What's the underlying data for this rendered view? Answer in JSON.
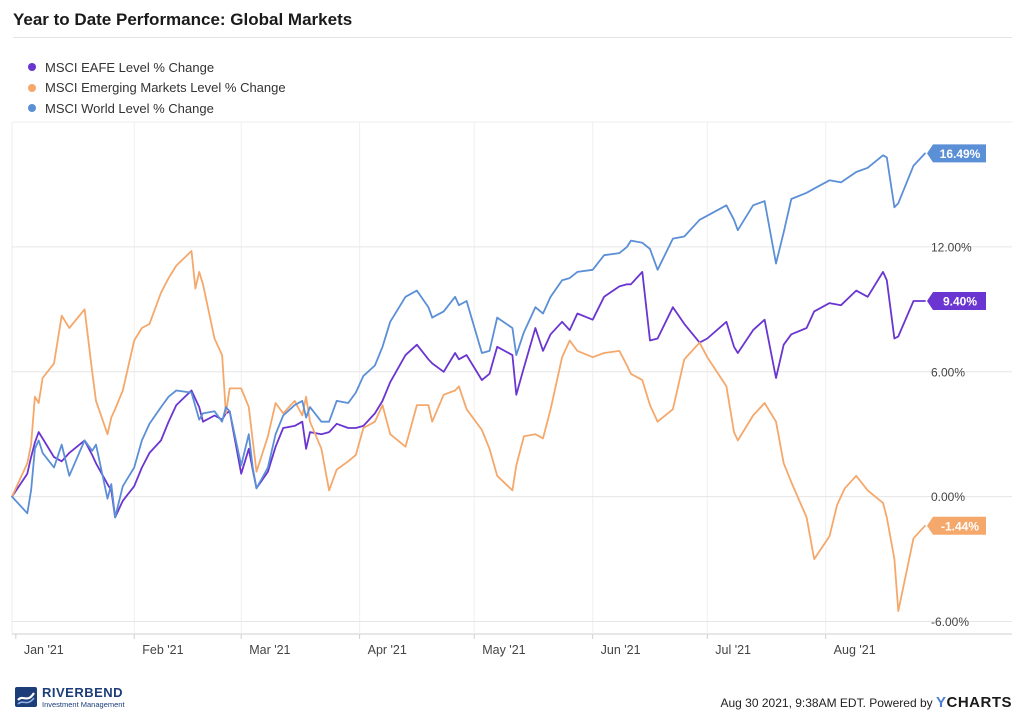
{
  "chart_data": {
    "type": "line",
    "title": "Year to Date Performance: Global Markets",
    "xlabel": "",
    "ylabel": "",
    "x_ticks": [
      "Jan '21",
      "Feb '21",
      "Mar '21",
      "Apr '21",
      "May '21",
      "Jun '21",
      "Jul '21",
      "Aug '21"
    ],
    "y_ticks": [
      "12.00%",
      "6.00%",
      "0.00%",
      "-6.00%"
    ],
    "y_tick_values": [
      12,
      6,
      0,
      -6
    ],
    "ylim": [
      -6.6,
      18
    ],
    "grid": true,
    "legend": "top-left",
    "series": [
      {
        "name": "MSCI EAFE Level % Change",
        "color": "#6a35d0",
        "last_label": "9.40%",
        "x": [
          "2020-12-31",
          "2021-01-04",
          "2021-01-05",
          "2021-01-06",
          "2021-01-07",
          "2021-01-08",
          "2021-01-11",
          "2021-01-13",
          "2021-01-15",
          "2021-01-19",
          "2021-01-21",
          "2021-01-22",
          "2021-01-25",
          "2021-01-26",
          "2021-01-27",
          "2021-01-29",
          "2021-02-01",
          "2021-02-03",
          "2021-02-05",
          "2021-02-08",
          "2021-02-10",
          "2021-02-12",
          "2021-02-16",
          "2021-02-18",
          "2021-02-19",
          "2021-02-22",
          "2021-02-24",
          "2021-02-25",
          "2021-02-26",
          "2021-03-01",
          "2021-03-03",
          "2021-03-04",
          "2021-03-05",
          "2021-03-08",
          "2021-03-10",
          "2021-03-12",
          "2021-03-15",
          "2021-03-17",
          "2021-03-18",
          "2021-03-19",
          "2021-03-22",
          "2021-03-24",
          "2021-03-26",
          "2021-03-29",
          "2021-03-31",
          "2021-04-02",
          "2021-04-05",
          "2021-04-07",
          "2021-04-09",
          "2021-04-13",
          "2021-04-16",
          "2021-04-19",
          "2021-04-20",
          "2021-04-23",
          "2021-04-26",
          "2021-04-27",
          "2021-04-29",
          "2021-05-03",
          "2021-05-05",
          "2021-05-07",
          "2021-05-11",
          "2021-05-12",
          "2021-05-14",
          "2021-05-17",
          "2021-05-19",
          "2021-05-21",
          "2021-05-24",
          "2021-05-26",
          "2021-05-28",
          "2021-06-01",
          "2021-06-04",
          "2021-06-08",
          "2021-06-10",
          "2021-06-11",
          "2021-06-14",
          "2021-06-16",
          "2021-06-18",
          "2021-06-22",
          "2021-06-25",
          "2021-06-29",
          "2021-07-01",
          "2021-07-06",
          "2021-07-08",
          "2021-07-09",
          "2021-07-13",
          "2021-07-16",
          "2021-07-19",
          "2021-07-21",
          "2021-07-23",
          "2021-07-27",
          "2021-07-29",
          "2021-08-02",
          "2021-08-05",
          "2021-08-09",
          "2021-08-12",
          "2021-08-16",
          "2021-08-17",
          "2021-08-19",
          "2021-08-20",
          "2021-08-24",
          "2021-08-27"
        ],
        "y": [
          0,
          1.1,
          1.9,
          2.6,
          3.1,
          2.8,
          1.9,
          1.7,
          2.1,
          2.7,
          2.0,
          1.6,
          0.6,
          0.3,
          -1.0,
          -0.2,
          0.5,
          1.4,
          2.1,
          2.7,
          3.6,
          4.4,
          5.1,
          4.3,
          3.6,
          3.9,
          3.7,
          4.0,
          4.1,
          1.1,
          2.3,
          1.3,
          0.4,
          1.2,
          2.4,
          3.3,
          3.4,
          3.6,
          2.3,
          3.1,
          3.0,
          3.1,
          3.5,
          3.3,
          3.3,
          3.4,
          4.0,
          4.6,
          5.5,
          6.8,
          7.3,
          6.6,
          6.4,
          6.0,
          6.9,
          6.6,
          6.8,
          5.6,
          5.9,
          7.2,
          6.8,
          4.9,
          6.2,
          8.1,
          7.0,
          7.8,
          8.4,
          8.0,
          8.8,
          8.5,
          9.6,
          10.1,
          10.2,
          10.2,
          10.8,
          7.5,
          7.6,
          9.1,
          8.3,
          7.4,
          7.6,
          8.4,
          7.2,
          6.9,
          8.0,
          8.5,
          5.7,
          7.3,
          7.8,
          8.1,
          8.9,
          9.3,
          9.2,
          9.9,
          9.6,
          10.8,
          10.4,
          7.6,
          7.7,
          9.4,
          9.4
        ]
      },
      {
        "name": "MSCI Emerging Markets Level % Change",
        "color": "#f5a86b",
        "last_label": "-1.44%",
        "x": [
          "2020-12-31",
          "2021-01-04",
          "2021-01-05",
          "2021-01-06",
          "2021-01-07",
          "2021-01-08",
          "2021-01-11",
          "2021-01-13",
          "2021-01-14",
          "2021-01-15",
          "2021-01-19",
          "2021-01-21",
          "2021-01-22",
          "2021-01-25",
          "2021-01-26",
          "2021-01-27",
          "2021-01-29",
          "2021-02-01",
          "2021-02-03",
          "2021-02-05",
          "2021-02-08",
          "2021-02-10",
          "2021-02-12",
          "2021-02-16",
          "2021-02-17",
          "2021-02-18",
          "2021-02-19",
          "2021-02-22",
          "2021-02-24",
          "2021-02-25",
          "2021-02-26",
          "2021-03-01",
          "2021-03-03",
          "2021-03-04",
          "2021-03-05",
          "2021-03-08",
          "2021-03-10",
          "2021-03-12",
          "2021-03-15",
          "2021-03-17",
          "2021-03-18",
          "2021-03-19",
          "2021-03-22",
          "2021-03-24",
          "2021-03-26",
          "2021-03-29",
          "2021-03-31",
          "2021-04-02",
          "2021-04-05",
          "2021-04-07",
          "2021-04-09",
          "2021-04-13",
          "2021-04-16",
          "2021-04-19",
          "2021-04-20",
          "2021-04-23",
          "2021-04-26",
          "2021-04-27",
          "2021-04-29",
          "2021-05-03",
          "2021-05-05",
          "2021-05-07",
          "2021-05-11",
          "2021-05-12",
          "2021-05-14",
          "2021-05-17",
          "2021-05-19",
          "2021-05-21",
          "2021-05-24",
          "2021-05-26",
          "2021-05-28",
          "2021-06-01",
          "2021-06-04",
          "2021-06-08",
          "2021-06-10",
          "2021-06-11",
          "2021-06-14",
          "2021-06-16",
          "2021-06-18",
          "2021-06-22",
          "2021-06-25",
          "2021-06-29",
          "2021-07-01",
          "2021-07-06",
          "2021-07-08",
          "2021-07-09",
          "2021-07-13",
          "2021-07-16",
          "2021-07-19",
          "2021-07-21",
          "2021-07-23",
          "2021-07-27",
          "2021-07-29",
          "2021-08-02",
          "2021-08-04",
          "2021-08-06",
          "2021-08-09",
          "2021-08-12",
          "2021-08-16",
          "2021-08-17",
          "2021-08-19",
          "2021-08-20",
          "2021-08-24",
          "2021-08-27"
        ],
        "y": [
          0,
          1.6,
          2.5,
          4.8,
          4.5,
          5.7,
          6.4,
          8.7,
          8.4,
          8.1,
          9.0,
          6.0,
          4.6,
          3.0,
          3.8,
          4.2,
          5.1,
          7.5,
          8.1,
          8.3,
          9.8,
          10.5,
          11.1,
          11.8,
          10.0,
          10.8,
          10.2,
          7.6,
          6.8,
          4.0,
          5.2,
          5.2,
          4.3,
          2.7,
          1.2,
          2.9,
          4.5,
          4.0,
          4.6,
          3.9,
          4.8,
          3.6,
          2.3,
          0.3,
          1.3,
          1.7,
          2.0,
          3.3,
          3.6,
          4.4,
          3.0,
          2.4,
          4.4,
          4.4,
          3.6,
          4.9,
          5.1,
          5.3,
          4.2,
          3.2,
          2.3,
          1.0,
          0.3,
          1.5,
          2.9,
          3.0,
          2.8,
          4.2,
          6.7,
          7.5,
          7.0,
          6.7,
          6.9,
          7.0,
          6.3,
          5.9,
          5.6,
          4.4,
          3.6,
          4.2,
          6.6,
          7.4,
          6.7,
          5.3,
          3.1,
          2.7,
          3.9,
          4.5,
          3.6,
          1.6,
          0.7,
          -1.0,
          -3.0,
          -1.9,
          -0.4,
          0.4,
          1.0,
          0.3,
          -0.3,
          -1.0,
          -3.0,
          -5.5,
          -2.0,
          -1.4
        ]
      },
      {
        "name": "MSCI World Level % Change",
        "color": "#5b8fd6",
        "last_label": "16.49%",
        "x": [
          "2020-12-31",
          "2021-01-04",
          "2021-01-05",
          "2021-01-06",
          "2021-01-07",
          "2021-01-08",
          "2021-01-11",
          "2021-01-13",
          "2021-01-15",
          "2021-01-19",
          "2021-01-21",
          "2021-01-22",
          "2021-01-25",
          "2021-01-26",
          "2021-01-27",
          "2021-01-29",
          "2021-02-01",
          "2021-02-03",
          "2021-02-05",
          "2021-02-08",
          "2021-02-10",
          "2021-02-12",
          "2021-02-16",
          "2021-02-18",
          "2021-02-19",
          "2021-02-22",
          "2021-02-24",
          "2021-02-25",
          "2021-02-26",
          "2021-03-01",
          "2021-03-03",
          "2021-03-04",
          "2021-03-05",
          "2021-03-08",
          "2021-03-10",
          "2021-03-12",
          "2021-03-15",
          "2021-03-17",
          "2021-03-18",
          "2021-03-19",
          "2021-03-22",
          "2021-03-24",
          "2021-03-26",
          "2021-03-29",
          "2021-03-31",
          "2021-04-02",
          "2021-04-05",
          "2021-04-07",
          "2021-04-09",
          "2021-04-13",
          "2021-04-16",
          "2021-04-19",
          "2021-04-20",
          "2021-04-23",
          "2021-04-26",
          "2021-04-27",
          "2021-04-29",
          "2021-05-03",
          "2021-05-05",
          "2021-05-07",
          "2021-05-11",
          "2021-05-12",
          "2021-05-14",
          "2021-05-17",
          "2021-05-19",
          "2021-05-21",
          "2021-05-24",
          "2021-05-26",
          "2021-05-28",
          "2021-06-01",
          "2021-06-04",
          "2021-06-08",
          "2021-06-10",
          "2021-06-11",
          "2021-06-14",
          "2021-06-16",
          "2021-06-18",
          "2021-06-22",
          "2021-06-25",
          "2021-06-29",
          "2021-07-01",
          "2021-07-06",
          "2021-07-08",
          "2021-07-09",
          "2021-07-13",
          "2021-07-16",
          "2021-07-19",
          "2021-07-21",
          "2021-07-23",
          "2021-07-27",
          "2021-07-29",
          "2021-08-02",
          "2021-08-05",
          "2021-08-09",
          "2021-08-12",
          "2021-08-16",
          "2021-08-17",
          "2021-08-19",
          "2021-08-20",
          "2021-08-24",
          "2021-08-27"
        ],
        "y": [
          0,
          -0.8,
          0.3,
          2.3,
          2.7,
          2.1,
          1.4,
          2.5,
          1.0,
          2.7,
          2.2,
          2.5,
          -0.1,
          0.6,
          -1.0,
          0.5,
          1.4,
          2.7,
          3.5,
          4.3,
          4.8,
          5.1,
          5.0,
          3.7,
          4.0,
          4.1,
          3.6,
          4.3,
          4.1,
          1.5,
          3.0,
          1.4,
          0.4,
          1.4,
          3.0,
          3.9,
          4.4,
          4.6,
          3.8,
          4.3,
          3.6,
          3.6,
          4.6,
          4.5,
          5.0,
          5.8,
          6.3,
          7.2,
          8.4,
          9.6,
          9.9,
          9.1,
          8.6,
          8.9,
          9.6,
          9.2,
          9.4,
          6.9,
          7.0,
          8.6,
          8.1,
          6.8,
          7.9,
          9.1,
          8.8,
          9.6,
          10.4,
          10.5,
          10.8,
          10.9,
          11.6,
          11.7,
          12.0,
          12.3,
          12.2,
          11.9,
          10.9,
          12.4,
          12.5,
          13.3,
          13.5,
          14.0,
          13.3,
          12.8,
          14.0,
          14.2,
          11.2,
          12.7,
          14.3,
          14.6,
          14.8,
          15.2,
          15.1,
          15.6,
          15.8,
          16.4,
          16.3,
          13.9,
          14.1,
          15.9,
          16.49
        ]
      }
    ]
  },
  "footer": {
    "logo_name": "RIVERBEND",
    "logo_subtitle": "Investment Management",
    "timestamp_text": "Aug 30 2021, 9:38AM EDT. Powered by",
    "brand_y": "Y",
    "brand_rest": "CHARTS"
  }
}
